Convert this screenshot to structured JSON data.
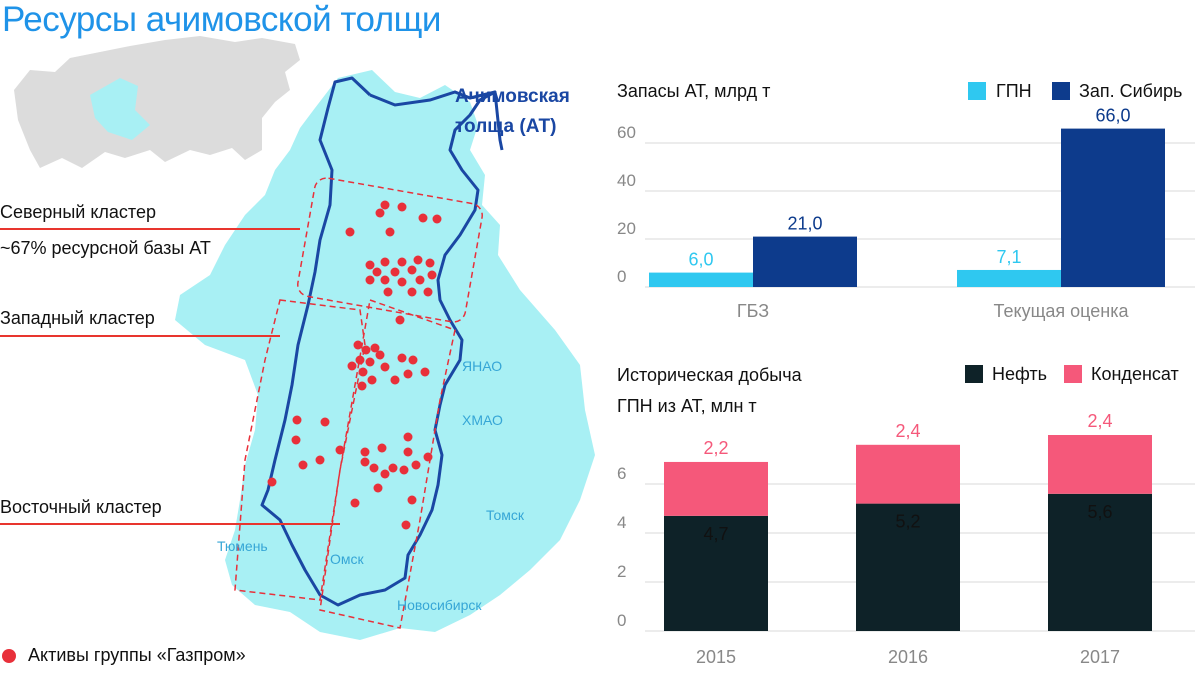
{
  "title": "Ресурсы ачимовской толщи",
  "map": {
    "at_label_1": "Ачимовская",
    "at_label_2": "толща (АТ)",
    "regions": [
      "ЯНАО",
      "ХМАО",
      "Томск",
      "Тюмень",
      "Омск",
      "Новосибирск"
    ],
    "clusters": {
      "north": "Северный кластер",
      "north_note": "~67% ресурсной базы АТ",
      "west": "Западный кластер",
      "east": "Восточный кластер"
    },
    "legend": "Активы группы «Газпром»",
    "colors": {
      "land": "#a8f0f4",
      "river": "#1a47a3",
      "asset": "#e8303a",
      "russia": "#d8d8d8",
      "highlight": "#a8f0f4"
    }
  },
  "chart_data": [
    {
      "type": "bar",
      "title": "Запасы АТ, млрд т",
      "categories": [
        "ГБЗ",
        "Текущая оценка"
      ],
      "series": [
        {
          "name": "ГПН",
          "values": [
            6.0,
            7.1
          ],
          "labels": [
            "6,0",
            "7,1"
          ],
          "color": "#2fc8f0"
        },
        {
          "name": "Зап. Сибирь",
          "values": [
            21.0,
            66.0
          ],
          "labels": [
            "21,0",
            "66,0"
          ],
          "color": "#0d3b8c"
        }
      ],
      "yticks": [
        0,
        20,
        40,
        60
      ],
      "ylim": [
        0,
        70
      ],
      "grid": true,
      "legend": "top-right"
    },
    {
      "type": "bar",
      "stacked": true,
      "title_lines": [
        "Историческая добыча",
        "ГПН из АТ, млн т"
      ],
      "categories": [
        "2015",
        "2016",
        "2017"
      ],
      "series": [
        {
          "name": "Нефть",
          "values": [
            4.7,
            5.2,
            5.6
          ],
          "labels": [
            "4,7",
            "5,2",
            "5,6"
          ],
          "color": "#0e2228"
        },
        {
          "name": "Конденсат",
          "values": [
            2.2,
            2.4,
            2.4
          ],
          "labels": [
            "2,2",
            "2,4",
            "2,4"
          ],
          "color": "#f5587a"
        }
      ],
      "yticks": [
        0,
        2,
        4,
        6
      ],
      "ylim": [
        0,
        8
      ],
      "grid": true,
      "legend": "top-right"
    }
  ]
}
